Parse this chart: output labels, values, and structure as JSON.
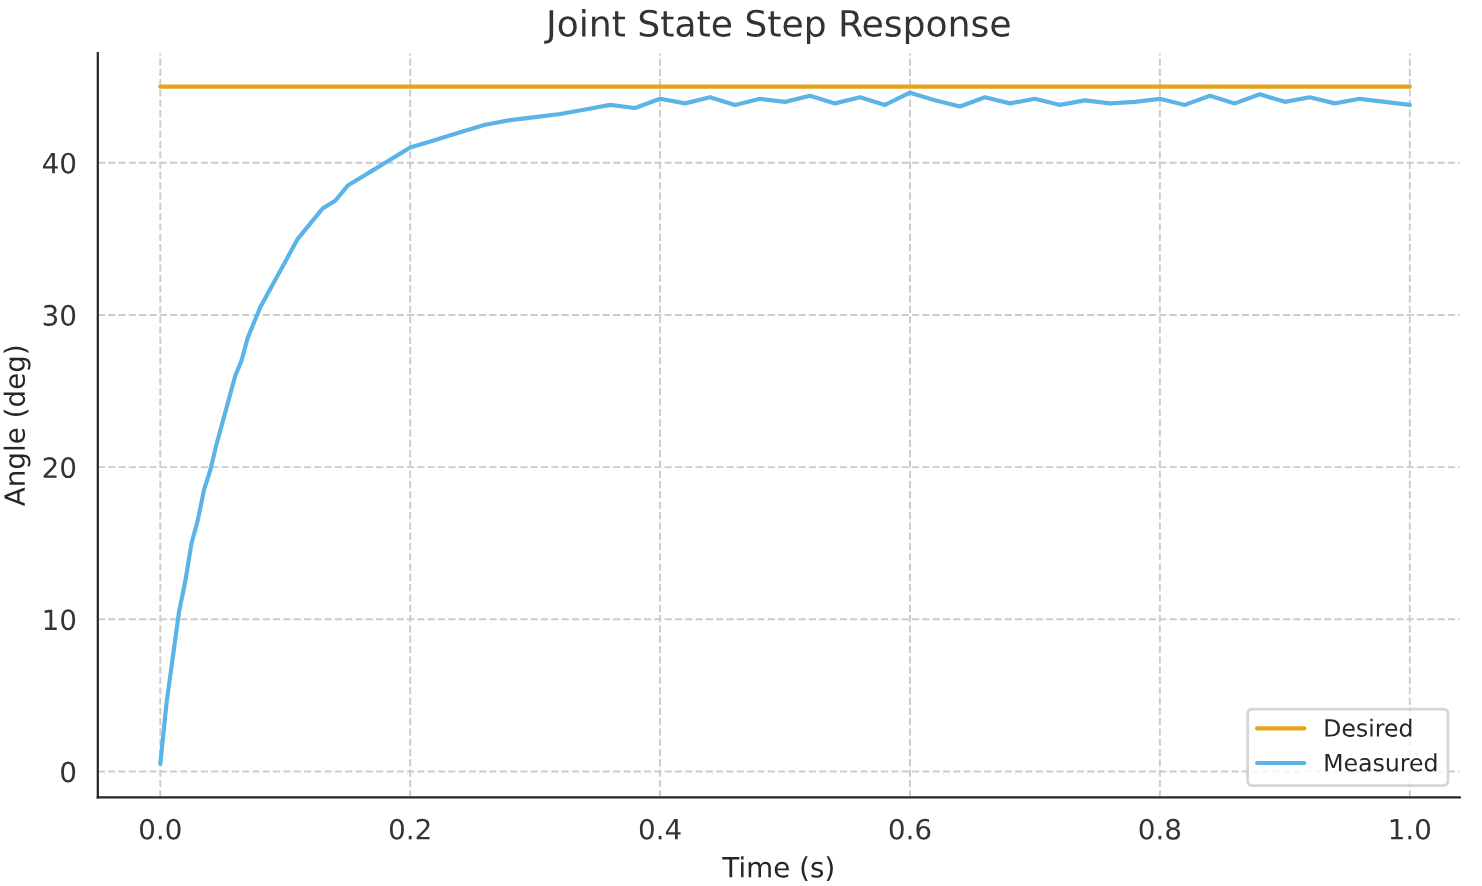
{
  "chart_data": {
    "type": "line",
    "title": "Joint State Step Response",
    "xlabel": "Time (s)",
    "ylabel": "Angle (deg)",
    "xlim": [
      -0.05,
      1.04
    ],
    "ylim": [
      -1.7,
      47.2
    ],
    "xticks": [
      {
        "value": 0,
        "label": "0.0"
      },
      0.2,
      0.4,
      0.6,
      0.8,
      {
        "value": 1,
        "label": "1.0"
      }
    ],
    "yticks": [
      0,
      10,
      20,
      30,
      40
    ],
    "grid": true,
    "legend": "bottom right",
    "line_style": "solid",
    "marker": "none",
    "series": [
      {
        "name": "Desired",
        "color": "#e8a21c",
        "x": [
          0,
          1
        ],
        "values": [
          45,
          45
        ]
      },
      {
        "name": "Measured",
        "color": "#5ab4e8",
        "x": [
          0,
          0.005,
          0.01,
          0.015,
          0.02,
          0.025,
          0.03,
          0.035,
          0.04,
          0.045,
          0.05,
          0.055,
          0.06,
          0.065,
          0.07,
          0.075,
          0.08,
          0.09,
          0.1,
          0.11,
          0.12,
          0.13,
          0.14,
          0.15,
          0.16,
          0.17,
          0.18,
          0.19,
          0.2,
          0.22,
          0.24,
          0.26,
          0.28,
          0.3,
          0.32,
          0.34,
          0.36,
          0.38,
          0.4,
          0.42,
          0.44,
          0.46,
          0.48,
          0.5,
          0.52,
          0.54,
          0.56,
          0.58,
          0.6,
          0.62,
          0.64,
          0.66,
          0.68,
          0.7,
          0.72,
          0.74,
          0.76,
          0.78,
          0.8,
          0.82,
          0.84,
          0.86,
          0.88,
          0.9,
          0.92,
          0.94,
          0.96,
          0.98,
          1.0
        ],
        "values": [
          0.5,
          4.5,
          7.5,
          10.5,
          12.5,
          15,
          16.5,
          18.5,
          19.8,
          21.5,
          23,
          24.5,
          26,
          27,
          28.5,
          29.5,
          30.5,
          32,
          33.5,
          35,
          36,
          37,
          37.5,
          38.5,
          39,
          39.5,
          40,
          40.5,
          41,
          41.5,
          42,
          42.5,
          42.8,
          43,
          43.2,
          43.5,
          43.8,
          43.6,
          44.2,
          43.9,
          44.3,
          43.8,
          44.2,
          44.0,
          44.4,
          43.9,
          44.3,
          43.8,
          44.6,
          44.1,
          43.7,
          44.3,
          43.9,
          44.2,
          43.8,
          44.1,
          43.9,
          44.0,
          44.2,
          43.8,
          44.4,
          43.9,
          44.5,
          44.0,
          44.3,
          43.9,
          44.2,
          44.0,
          43.8
        ]
      }
    ]
  }
}
